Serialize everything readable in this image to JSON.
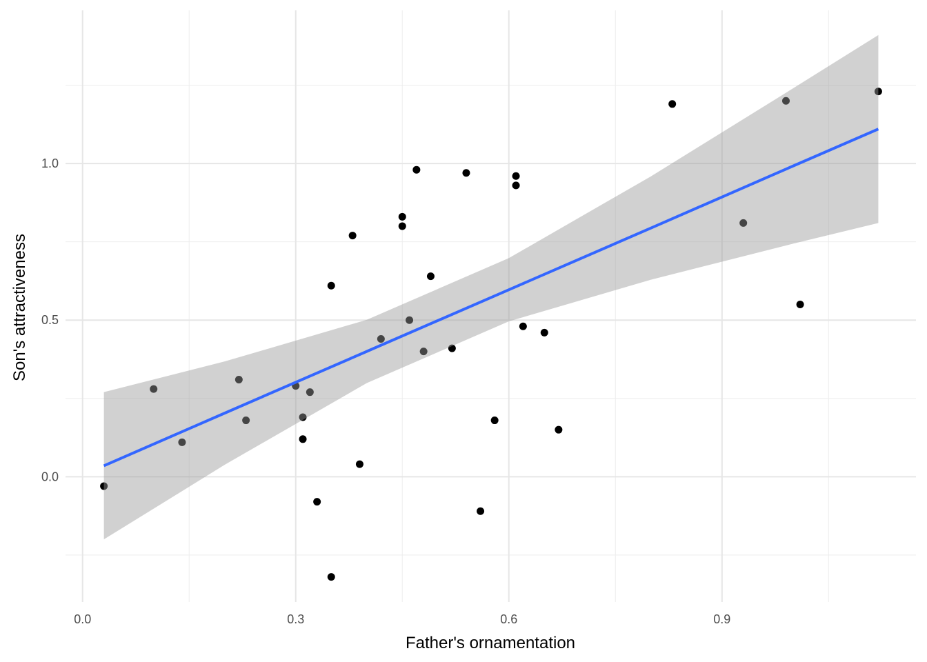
{
  "chart_data": {
    "type": "scatter",
    "title": "",
    "xlabel": "Father's ornamentation",
    "ylabel": "Son's attractiveness",
    "xlim": [
      -0.024,
      1.173
    ],
    "ylim": [
      -0.4,
      1.489
    ],
    "grid": true,
    "x_ticks": [
      0.0,
      0.3,
      0.6,
      0.9
    ],
    "x_tick_labels": [
      "0.0",
      "0.3",
      "0.6",
      "0.9"
    ],
    "x_minor": [
      0.15,
      0.45,
      0.75,
      1.05
    ],
    "y_ticks": [
      0.0,
      0.5,
      1.0
    ],
    "y_tick_labels": [
      "0.0",
      "0.5",
      "1.0"
    ],
    "y_minor": [
      -0.25,
      0.25,
      0.75,
      1.25
    ],
    "points": [
      [
        0.03,
        -0.03
      ],
      [
        0.1,
        0.28
      ],
      [
        0.14,
        0.11
      ],
      [
        0.22,
        0.31
      ],
      [
        0.23,
        0.18
      ],
      [
        0.3,
        0.29
      ],
      [
        0.32,
        0.27
      ],
      [
        0.31,
        0.19
      ],
      [
        0.31,
        0.12
      ],
      [
        0.33,
        -0.08
      ],
      [
        0.35,
        0.61
      ],
      [
        0.35,
        -0.32
      ],
      [
        0.38,
        0.77
      ],
      [
        0.39,
        0.04
      ],
      [
        0.42,
        0.44
      ],
      [
        0.45,
        0.83
      ],
      [
        0.45,
        0.8
      ],
      [
        0.46,
        0.5
      ],
      [
        0.47,
        0.98
      ],
      [
        0.48,
        0.4
      ],
      [
        0.49,
        0.64
      ],
      [
        0.52,
        0.41
      ],
      [
        0.54,
        0.97
      ],
      [
        0.56,
        -0.11
      ],
      [
        0.58,
        0.18
      ],
      [
        0.61,
        0.96
      ],
      [
        0.61,
        0.93
      ],
      [
        0.62,
        0.48
      ],
      [
        0.65,
        0.46
      ],
      [
        0.67,
        0.15
      ],
      [
        0.83,
        1.19
      ],
      [
        0.93,
        0.81
      ],
      [
        0.99,
        1.2
      ],
      [
        1.01,
        0.55
      ],
      [
        1.12,
        1.23
      ]
    ],
    "fit": {
      "method": "lm",
      "x": [
        0.03,
        0.2,
        0.4,
        0.6,
        0.8,
        1.0,
        1.12
      ],
      "y": [
        0.035,
        0.203,
        0.4,
        0.597,
        0.794,
        0.992,
        1.11
      ],
      "lower": [
        -0.2,
        0.038,
        0.299,
        0.496,
        0.629,
        0.744,
        0.81
      ],
      "upper": [
        0.27,
        0.368,
        0.501,
        0.698,
        0.959,
        1.24,
        1.41
      ]
    },
    "colors": {
      "point": "#000000",
      "line": "#3366FF",
      "ribbon": "#999999"
    }
  }
}
